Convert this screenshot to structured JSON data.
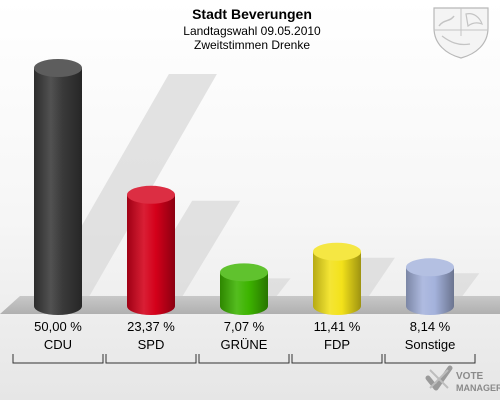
{
  "chart_data": {
    "type": "bar",
    "title": "Stadt Beverungen",
    "subtitle_line1": "Landtagswahl 09.05.2010",
    "subtitle_line2": "Zweitstimmen Drenke",
    "categories": [
      "CDU",
      "SPD",
      "GRÜNE",
      "FDP",
      "Sonstige"
    ],
    "values": [
      50.0,
      23.37,
      7.07,
      11.41,
      8.14
    ],
    "value_labels": [
      "50,00 %",
      "23,37 %",
      "7,07 %",
      "11,41 %",
      "8,14 %"
    ],
    "colors": [
      "#3a3a3a",
      "#d4001a",
      "#3db400",
      "#f3e21a",
      "#a4b2dc"
    ],
    "ylim": [
      0,
      50
    ],
    "grid": false,
    "legend": "none"
  },
  "branding": {
    "watermark": "VOTE MANAGER",
    "watermark_line1": "VOTE",
    "watermark_line2": "MANAGER",
    "crest_icon": "nrw-crest-icon"
  }
}
